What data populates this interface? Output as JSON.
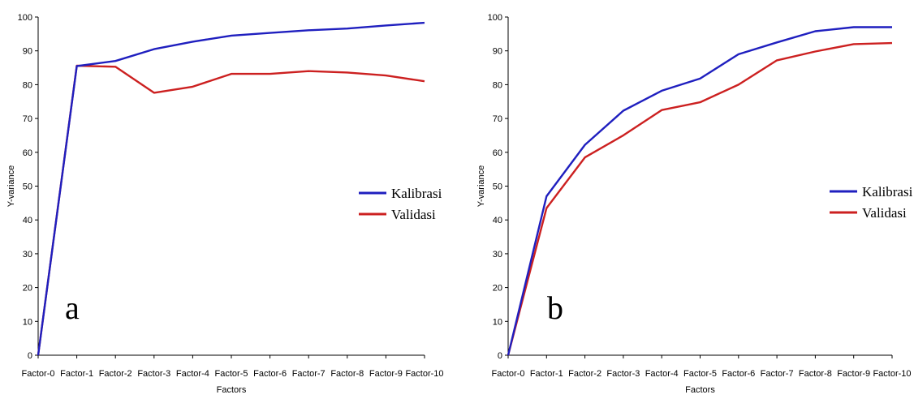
{
  "chart_data": [
    {
      "type": "line",
      "panel_label": "a",
      "categories": [
        "Factor-0",
        "Factor-1",
        "Factor-2",
        "Factor-3",
        "Factor-4",
        "Factor-5",
        "Factor-6",
        "Factor-7",
        "Factor-8",
        "Factor-9",
        "Factor-10"
      ],
      "series": [
        {
          "name": "Kalibrasi",
          "color": "#1f1fbf",
          "values": [
            0,
            85.5,
            87,
            90.5,
            92.7,
            94.5,
            95.3,
            96.1,
            96.6,
            97.5,
            98.3
          ]
        },
        {
          "name": "Validasi",
          "color": "#cc2020",
          "values": [
            0,
            85.6,
            85.3,
            77.6,
            79.4,
            83.2,
            83.2,
            84,
            83.6,
            82.7,
            81
          ]
        }
      ],
      "xlabel": "Factors",
      "ylabel": "Y-variance",
      "ylim": [
        0,
        100
      ],
      "yticks": [
        0,
        10,
        20,
        30,
        40,
        50,
        60,
        70,
        80,
        90,
        100
      ],
      "grid": false,
      "legend_position": "right"
    },
    {
      "type": "line",
      "panel_label": "b",
      "categories": [
        "Factor-0",
        "Factor-1",
        "Factor-2",
        "Factor-3",
        "Factor-4",
        "Factor-5",
        "Factor-6",
        "Factor-7",
        "Factor-8",
        "Factor-9",
        "Factor-10"
      ],
      "series": [
        {
          "name": "Kalibrasi",
          "color": "#1f1fbf",
          "values": [
            0,
            47,
            62.2,
            72.3,
            78.2,
            81.8,
            89,
            92.5,
            95.8,
            97,
            97
          ]
        },
        {
          "name": "Validasi",
          "color": "#cc2020",
          "values": [
            0,
            43.5,
            58.5,
            65,
            72.5,
            74.8,
            80,
            87.2,
            89.8,
            92,
            92.3
          ]
        }
      ],
      "xlabel": "Factors",
      "ylabel": "Y-variance",
      "ylim": [
        0,
        100
      ],
      "yticks": [
        0,
        10,
        20,
        30,
        40,
        50,
        60,
        70,
        80,
        90,
        100
      ],
      "grid": false,
      "legend_position": "right"
    }
  ]
}
